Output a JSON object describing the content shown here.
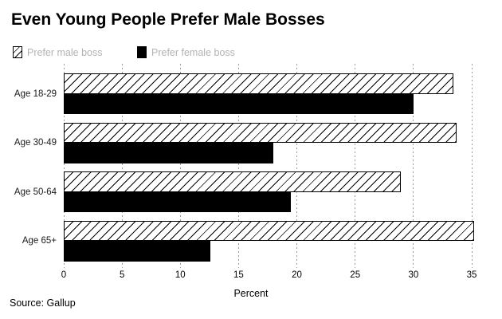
{
  "title": "Even Young People Prefer Male Bosses",
  "source_note": "Source: Gallup",
  "colors": {
    "title_text": "#000000",
    "bar_solid_fill": "#000000",
    "hatch_line": "#000000",
    "hatch_background": "#ffffff",
    "grid_line": "#999999",
    "legend_text": "#b3b3b3",
    "axis_text": "#000000",
    "background": "#ffffff"
  },
  "legend": {
    "male_label": "Prefer male boss",
    "female_label": "Prefer female boss"
  },
  "chart_data": {
    "type": "bar",
    "orientation": "horizontal",
    "title": "Even Young People Prefer Male Bosses",
    "categories": [
      "Age 18-29",
      "Age 30-49",
      "Age 50-64",
      "Age 65+"
    ],
    "series": [
      {
        "name": "Prefer male boss",
        "style": "hatched",
        "values": [
          33.4,
          33.7,
          28.9,
          35.2
        ]
      },
      {
        "name": "Prefer female boss",
        "style": "solid-black",
        "values": [
          30,
          18,
          19.5,
          12.6
        ]
      }
    ],
    "xlabel": "Percent",
    "xlim": [
      0,
      35
    ],
    "xticks": [
      0,
      5,
      10,
      15,
      20,
      25,
      30,
      35
    ],
    "grid": "vertical-dotted",
    "legend_position": "top-left",
    "source": "Source: Gallup"
  }
}
